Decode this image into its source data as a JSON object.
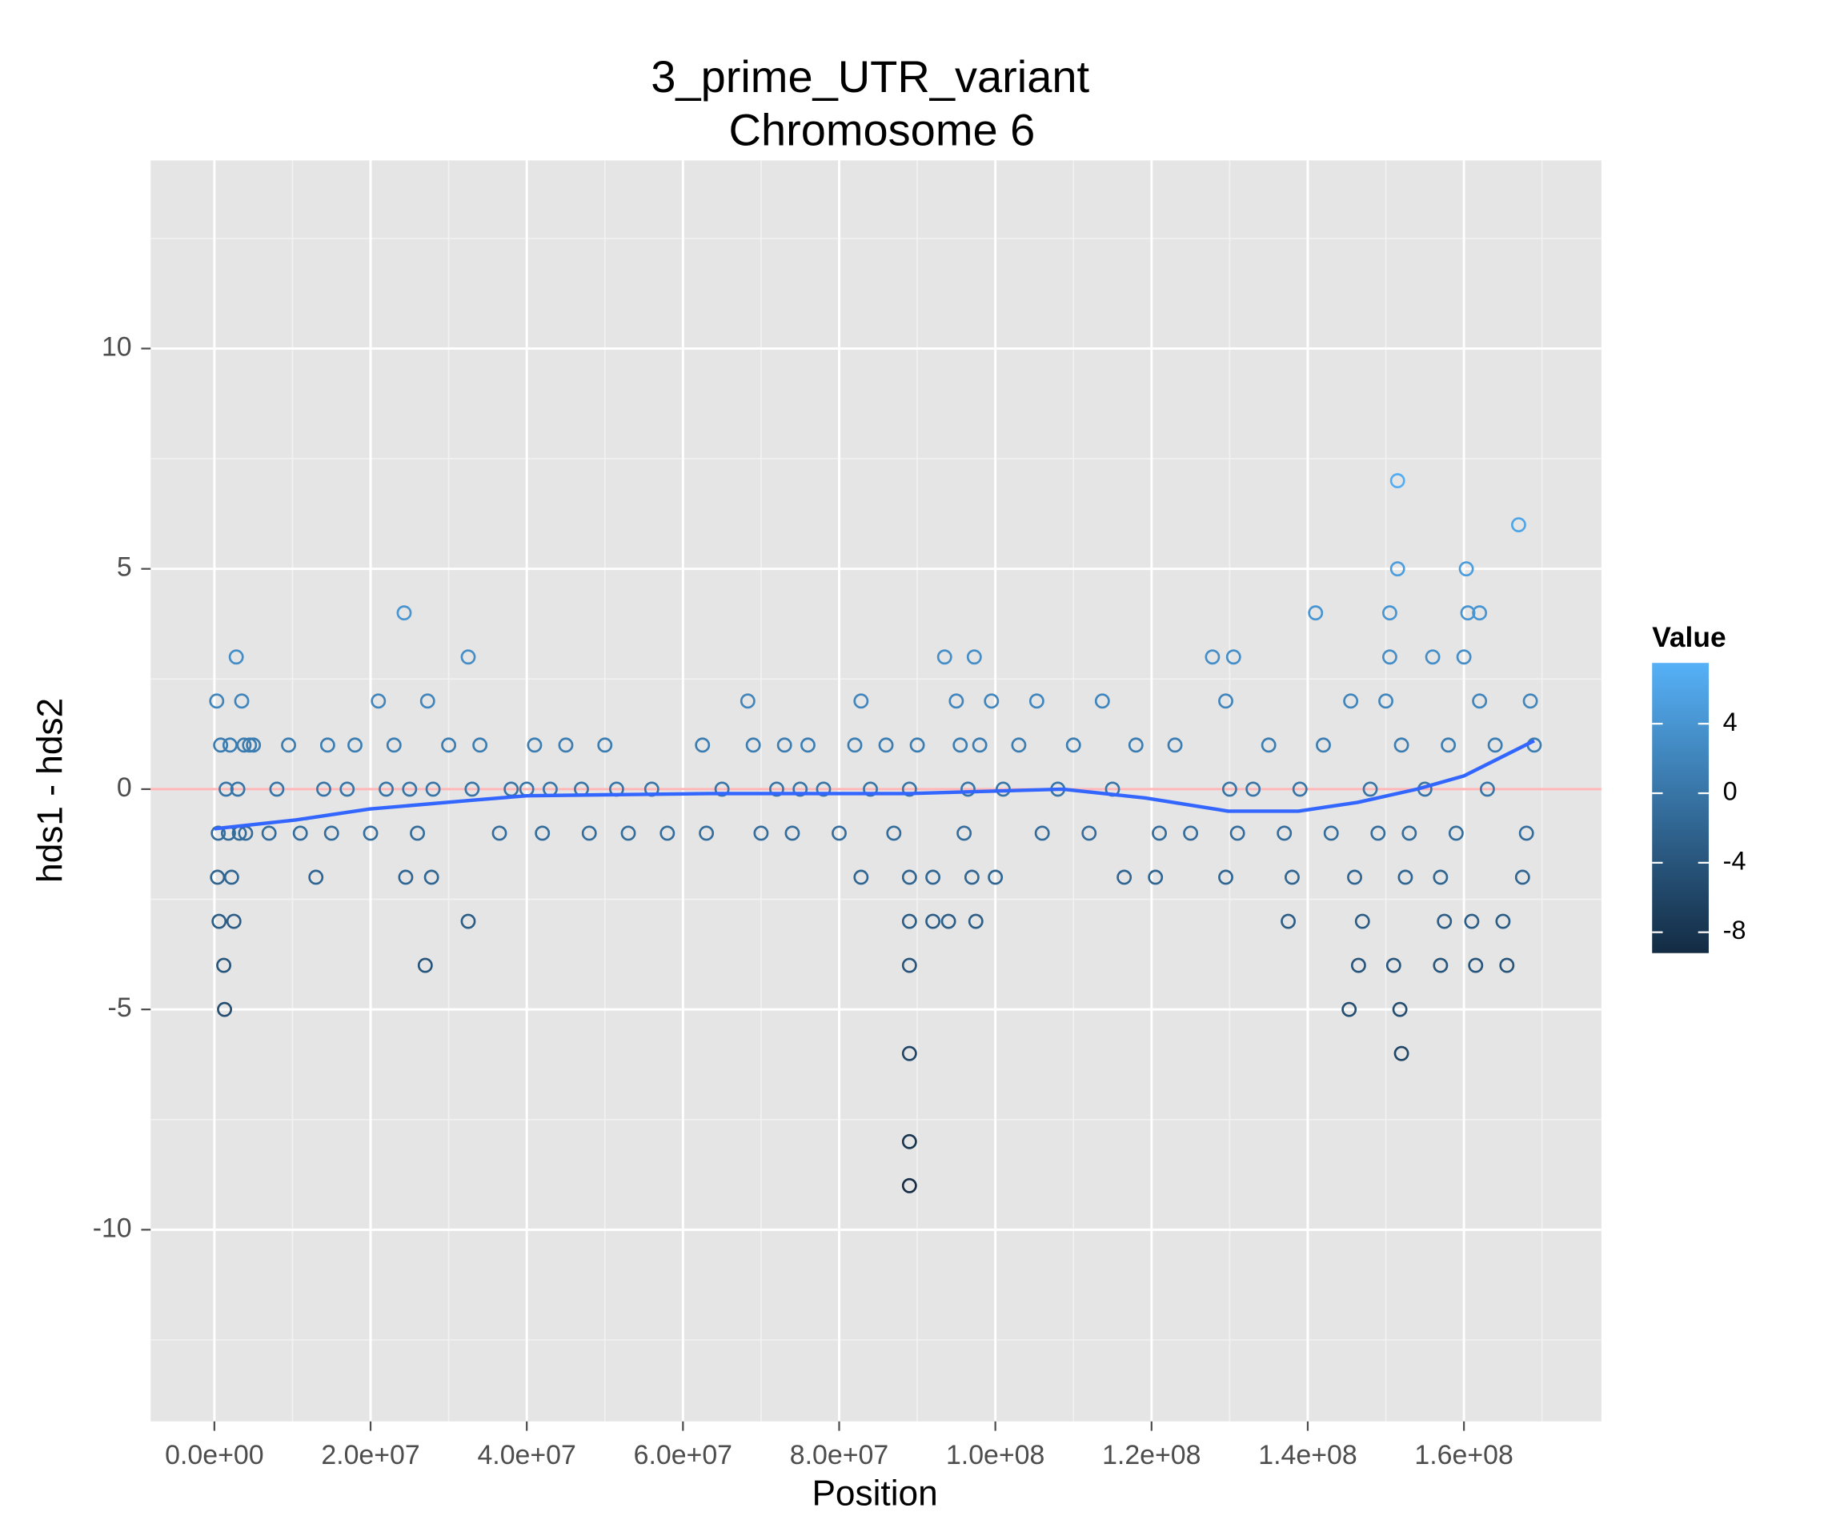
{
  "chart_data": {
    "type": "scatter",
    "title": "3_prime_UTR_variant",
    "subtitle": "Chromosome 6",
    "x_label": "Position",
    "y_label": "hds1 - hds2",
    "xlim": [
      -8160000.0,
      177600000.0
    ],
    "ylim": [
      -14.35,
      14.27
    ],
    "xticks": [
      {
        "value": 0,
        "label": "0.0e+00"
      },
      {
        "value": 20000000.0,
        "label": "2.0e+07"
      },
      {
        "value": 40000000.0,
        "label": "4.0e+07"
      },
      {
        "value": 60000000.0,
        "label": "6.0e+07"
      },
      {
        "value": 80000000.0,
        "label": "8.0e+07"
      },
      {
        "value": 100000000.0,
        "label": "1.0e+08"
      },
      {
        "value": 120000000.0,
        "label": "1.2e+08"
      },
      {
        "value": 140000000.0,
        "label": "1.4e+08"
      },
      {
        "value": 160000000.0,
        "label": "1.6e+08"
      }
    ],
    "yticks": [
      -10,
      -5,
      0,
      5,
      10
    ],
    "grid": true,
    "hline": {
      "value": 0,
      "color": "#ffb6b6"
    },
    "smooth": {
      "color": "#3366ff",
      "x": [
        0,
        10400000.0,
        19900000.0,
        33100000.0,
        40000000.0,
        63400000.0,
        89000000.0,
        108600000.0,
        119200000.0,
        129800000.0,
        138800000.0,
        146400000.0,
        154000000.0,
        160000000.0,
        169000000.0
      ],
      "values": [
        -0.9,
        -0.7,
        -0.45,
        -0.25,
        -0.15,
        -0.1,
        -0.1,
        0,
        -0.2,
        -0.5,
        -0.5,
        -0.3,
        0,
        0.3,
        1.1
      ]
    },
    "color_scale": {
      "title": "Value",
      "low": "#132b43",
      "high": "#56b1f7",
      "limits": [
        -9.2,
        7.5
      ],
      "ticks": [
        -8,
        -4,
        0,
        4
      ]
    },
    "x": [
      300000.0,
      500000.0,
      400000.0,
      600000.0,
      800000.0,
      1200000.0,
      1300000.0,
      1500000.0,
      1800000.0,
      2000000.0,
      2200000.0,
      2500000.0,
      2800000.0,
      3000000.0,
      3200000.0,
      3500000.0,
      3800000.0,
      4000000.0,
      4500000.0,
      5000000.0,
      7000000.0,
      8000000.0,
      9500000.0,
      11000000.0,
      13000000.0,
      14000000.0,
      14500000.0,
      15000000.0,
      17000000.0,
      18000000.0,
      20000000.0,
      21000000.0,
      22000000.0,
      23000000.0,
      24300000.0,
      24500000.0,
      25000000.0,
      26000000.0,
      27300000.0,
      27000000.0,
      27800000.0,
      28000000.0,
      30000000.0,
      32500000.0,
      32500000.0,
      33000000.0,
      34000000.0,
      36500000.0,
      38000000.0,
      40000000.0,
      41000000.0,
      42000000.0,
      43000000.0,
      45000000.0,
      47000000.0,
      48000000.0,
      50000000.0,
      51500000.0,
      53000000.0,
      56000000.0,
      58000000.0,
      62500000.0,
      63000000.0,
      65000000.0,
      68300000.0,
      69000000.0,
      70000000.0,
      72000000.0,
      73000000.0,
      74000000.0,
      75000000.0,
      76000000.0,
      78000000.0,
      80000000.0,
      82000000.0,
      82800000.0,
      82800000.0,
      84000000.0,
      86000000.0,
      87000000.0,
      89000000.0,
      89000000.0,
      89000000.0,
      89000000.0,
      89000000.0,
      89000000.0,
      89000000.0,
      90000000.0,
      92000000.0,
      92000000.0,
      93500000.0,
      94000000.0,
      95000000.0,
      95500000.0,
      96000000.0,
      96500000.0,
      97000000.0,
      97300000.0,
      97500000.0,
      98000000.0,
      99500000.0,
      100000000.0,
      101000000.0,
      103000000.0,
      105300000.0,
      106000000.0,
      108000000.0,
      110000000.0,
      112000000.0,
      113700000.0,
      115000000.0,
      116500000.0,
      118000000.0,
      120500000.0,
      121000000.0,
      123000000.0,
      125000000.0,
      127800000.0,
      129500000.0,
      129500000.0,
      130000000.0,
      130500000.0,
      131000000.0,
      133000000.0,
      135000000.0,
      137000000.0,
      137500000.0,
      138000000.0,
      139000000.0,
      141000000.0,
      142000000.0,
      143000000.0,
      145300000.0,
      145500000.0,
      146000000.0,
      146500000.0,
      147000000.0,
      148000000.0,
      149000000.0,
      150000000.0,
      150500000.0,
      150500000.0,
      151000000.0,
      151500000.0,
      151500000.0,
      151800000.0,
      152000000.0,
      152000000.0,
      152500000.0,
      153000000.0,
      155000000.0,
      156000000.0,
      157000000.0,
      157000000.0,
      157500000.0,
      158000000.0,
      159000000.0,
      160000000.0,
      160300000.0,
      160500000.0,
      161000000.0,
      161500000.0,
      162000000.0,
      162000000.0,
      163000000.0,
      164000000.0,
      165000000.0,
      165500000.0,
      167000000.0,
      167500000.0,
      168000000.0,
      168500000.0,
      169000000.0
    ],
    "values": [
      2,
      -1,
      -2,
      -3,
      1,
      -4,
      -5,
      0,
      -1,
      1,
      -2,
      -3,
      3,
      0,
      -1,
      2,
      1,
      -1,
      1,
      1,
      -1,
      0,
      1,
      -1,
      -2,
      0,
      1,
      -1,
      0,
      1,
      -1,
      2,
      0,
      1,
      4,
      -2,
      0,
      -1,
      2,
      -4,
      -2,
      0,
      1,
      3,
      -3,
      0,
      1,
      -1,
      0,
      0,
      1,
      -1,
      0,
      1,
      0,
      -1,
      1,
      0,
      -1,
      0,
      -1,
      1,
      -1,
      0,
      2,
      1,
      -1,
      0,
      1,
      -1,
      0,
      1,
      0,
      -1,
      1,
      2,
      -2,
      0,
      1,
      -1,
      -2,
      -3,
      -4,
      -6,
      -8,
      -9,
      0,
      1,
      -2,
      -3,
      3,
      -3,
      2,
      1,
      -1,
      0,
      -2,
      3,
      -3,
      1,
      2,
      -2,
      0,
      1,
      2,
      -1,
      0,
      1,
      -1,
      2,
      0,
      -2,
      1,
      -2,
      -1,
      1,
      -1,
      3,
      2,
      -2,
      0,
      3,
      -1,
      0,
      1,
      -1,
      -3,
      -2,
      0,
      4,
      1,
      -1,
      -5,
      2,
      -2,
      -4,
      -3,
      0,
      -1,
      2,
      3,
      4,
      -4,
      7,
      5,
      -5,
      -6,
      1,
      -2,
      -1,
      0,
      3,
      -2,
      -4,
      -3,
      1,
      -1,
      3,
      5,
      4,
      -3,
      -4,
      4,
      2,
      0,
      1,
      -3,
      -4,
      6,
      -2,
      -1,
      2,
      1
    ]
  }
}
